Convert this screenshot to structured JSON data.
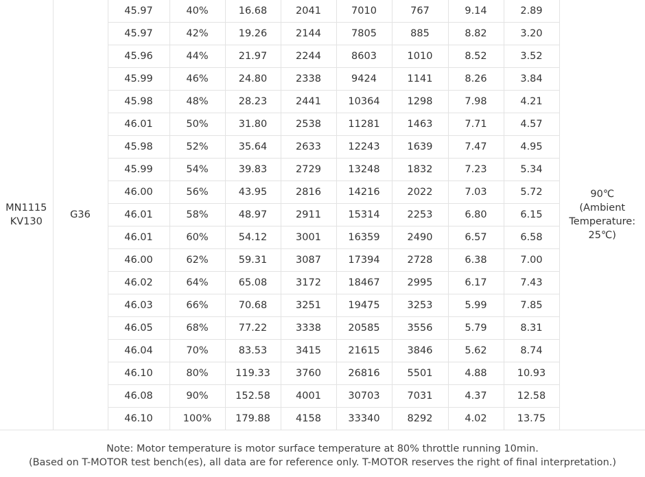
{
  "model": {
    "line1": "MN1115",
    "line2": "KV130"
  },
  "propeller": "G36",
  "temperature": {
    "line1": "90℃",
    "line2": "(Ambient",
    "line3": "Temperature:",
    "line4": "25℃)"
  },
  "rows": [
    [
      "45.97",
      "40%",
      "16.68",
      "2041",
      "7010",
      "767",
      "9.14",
      "2.89"
    ],
    [
      "45.97",
      "42%",
      "19.26",
      "2144",
      "7805",
      "885",
      "8.82",
      "3.20"
    ],
    [
      "45.96",
      "44%",
      "21.97",
      "2244",
      "8603",
      "1010",
      "8.52",
      "3.52"
    ],
    [
      "45.99",
      "46%",
      "24.80",
      "2338",
      "9424",
      "1141",
      "8.26",
      "3.84"
    ],
    [
      "45.98",
      "48%",
      "28.23",
      "2441",
      "10364",
      "1298",
      "7.98",
      "4.21"
    ],
    [
      "46.01",
      "50%",
      "31.80",
      "2538",
      "11281",
      "1463",
      "7.71",
      "4.57"
    ],
    [
      "45.98",
      "52%",
      "35.64",
      "2633",
      "12243",
      "1639",
      "7.47",
      "4.95"
    ],
    [
      "45.99",
      "54%",
      "39.83",
      "2729",
      "13248",
      "1832",
      "7.23",
      "5.34"
    ],
    [
      "46.00",
      "56%",
      "43.95",
      "2816",
      "14216",
      "2022",
      "7.03",
      "5.72"
    ],
    [
      "46.01",
      "58%",
      "48.97",
      "2911",
      "15314",
      "2253",
      "6.80",
      "6.15"
    ],
    [
      "46.01",
      "60%",
      "54.12",
      "3001",
      "16359",
      "2490",
      "6.57",
      "6.58"
    ],
    [
      "46.00",
      "62%",
      "59.31",
      "3087",
      "17394",
      "2728",
      "6.38",
      "7.00"
    ],
    [
      "46.02",
      "64%",
      "65.08",
      "3172",
      "18467",
      "2995",
      "6.17",
      "7.43"
    ],
    [
      "46.03",
      "66%",
      "70.68",
      "3251",
      "19475",
      "3253",
      "5.99",
      "7.85"
    ],
    [
      "46.05",
      "68%",
      "77.22",
      "3338",
      "20585",
      "3556",
      "5.79",
      "8.31"
    ],
    [
      "46.04",
      "70%",
      "83.53",
      "3415",
      "21615",
      "3846",
      "5.62",
      "8.74"
    ],
    [
      "46.10",
      "80%",
      "119.33",
      "3760",
      "26816",
      "5501",
      "4.88",
      "10.93"
    ],
    [
      "46.08",
      "90%",
      "152.58",
      "4001",
      "30703",
      "7031",
      "4.37",
      "12.58"
    ],
    [
      "46.10",
      "100%",
      "179.88",
      "4158",
      "33340",
      "8292",
      "4.02",
      "13.75"
    ]
  ],
  "note": {
    "line1": "Note: Motor temperature is motor surface temperature at 80% throttle running 10min.",
    "line2": "(Based on T-MOTOR test bench(es), all data are for reference only. T-MOTOR reserves the right of final interpretation.)"
  }
}
